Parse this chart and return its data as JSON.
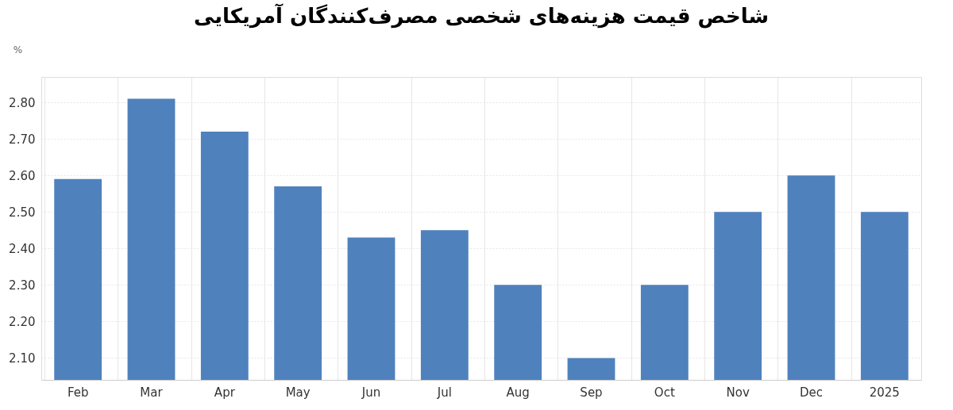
{
  "chart_data": {
    "type": "bar",
    "title": "شاخص قیمت هزینه‌های شخصی مصرف‌کنندگان آمریکایی",
    "ylabel": "%",
    "categories": [
      "Feb",
      "Mar",
      "Apr",
      "May",
      "Jun",
      "Jul",
      "Aug",
      "Sep",
      "Oct",
      "Nov",
      "Dec",
      "2025"
    ],
    "values": [
      2.59,
      2.81,
      2.72,
      2.57,
      2.43,
      2.45,
      2.3,
      2.1,
      2.3,
      2.5,
      2.6,
      2.5
    ],
    "color": "#4f81bd",
    "ylim": [
      2.04,
      2.87
    ],
    "yticks": [
      {
        "value": 2.1,
        "label": "2.10"
      },
      {
        "value": 2.2,
        "label": "2.20"
      },
      {
        "value": 2.3,
        "label": "2.30"
      },
      {
        "value": 2.4,
        "label": "2.40"
      },
      {
        "value": 2.5,
        "label": "2.50"
      },
      {
        "value": 2.6,
        "label": "2.60"
      },
      {
        "value": 2.7,
        "label": "2.70"
      },
      {
        "value": 2.8,
        "label": "2.80"
      }
    ],
    "grid": true
  }
}
